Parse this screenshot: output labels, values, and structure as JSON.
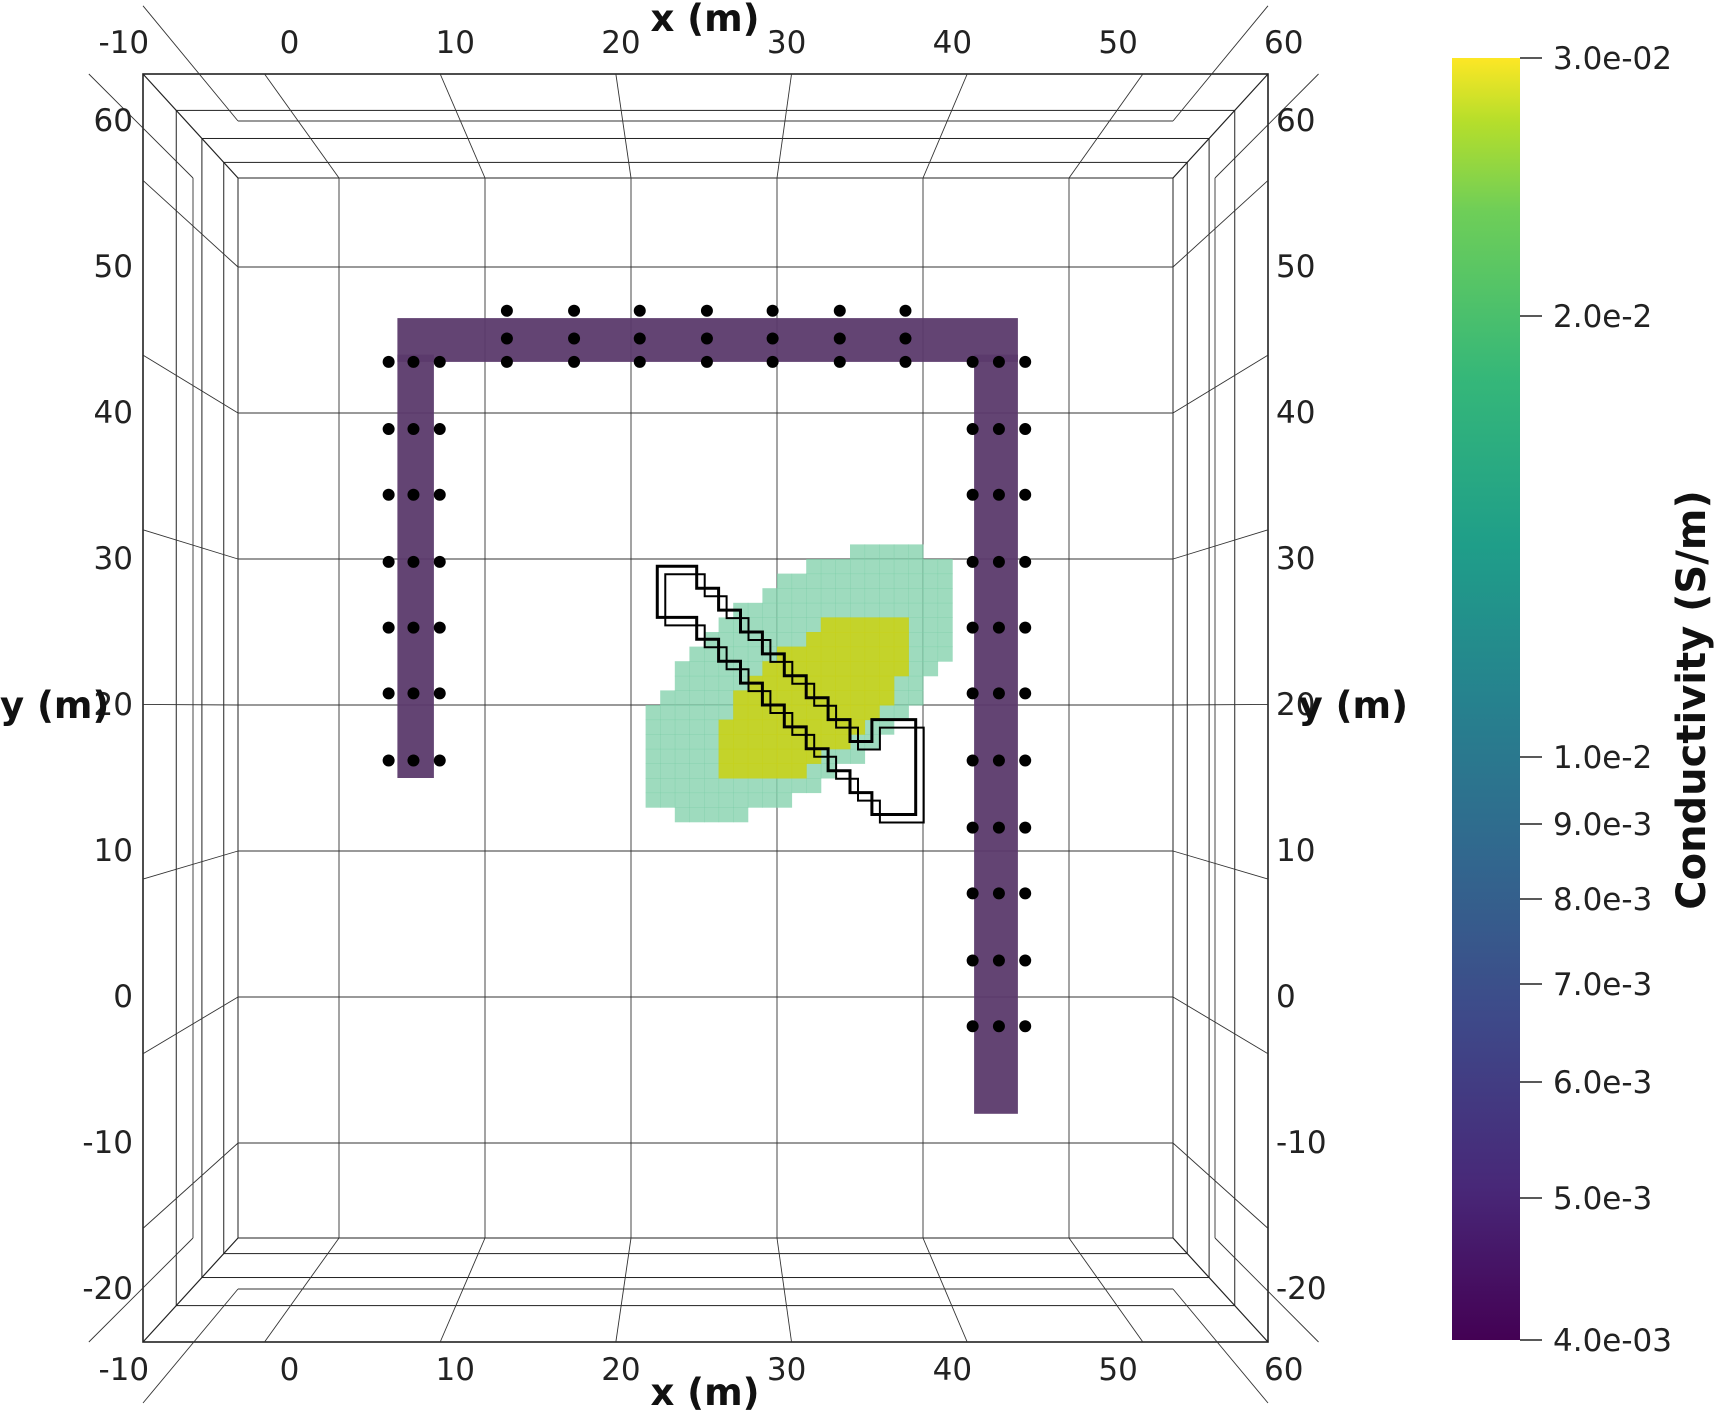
{
  "chart_data": {
    "type": "3d-volume-render",
    "x_axis": {
      "label": "x (m)",
      "ticks": [
        -10,
        0,
        10,
        20,
        30,
        40,
        50,
        60
      ],
      "tick_labels": [
        "-10",
        "0",
        "10",
        "20",
        "30",
        "40",
        "50",
        "60"
      ],
      "range": [
        -13,
        64
      ]
    },
    "y_axis": {
      "label": "y (m)",
      "ticks": [
        -20,
        -10,
        0,
        10,
        20,
        30,
        40,
        50,
        60
      ],
      "tick_labels": [
        "-20",
        "-10",
        "0",
        "10",
        "20",
        "30",
        "40",
        "50",
        "60"
      ],
      "range": [
        -24,
        64
      ]
    },
    "colorbar": {
      "title": "Conductivity (S/m)",
      "range": [
        0.004,
        0.03
      ],
      "ticks": [
        0.03,
        0.02,
        0.01,
        0.009,
        0.008,
        0.007,
        0.006,
        0.005,
        0.004
      ],
      "tick_labels": [
        "3.0e-02",
        "2.0e-2",
        "1.0e-2",
        "9.0e-3",
        "8.0e-3",
        "7.0e-3",
        "6.0e-3",
        "5.0e-3",
        "4.0e-03"
      ],
      "scale": "log",
      "colormap": "viridis"
    },
    "boreholes": {
      "color": "#5b3a6b",
      "segments": [
        {
          "x": [
            4,
            6.5
          ],
          "y": [
            15,
            44
          ]
        },
        {
          "x": [
            4,
            46.5
          ],
          "y": [
            43.5,
            46.5
          ]
        },
        {
          "x": [
            43.5,
            46.5
          ],
          "y": [
            -8,
            44
          ]
        }
      ]
    },
    "electrodes": {
      "color": "#000000",
      "left_column": {
        "xs": [
          3.4,
          5.1,
          6.9
        ],
        "ys": [
          43.5,
          38.9,
          34.4,
          29.8,
          25.3,
          20.8,
          16.2
        ]
      },
      "top_row": {
        "xs": [
          11.5,
          16.1,
          20.6,
          25.2,
          29.7,
          34.3,
          38.8
        ],
        "ys": [
          47,
          45.1,
          43.5
        ]
      },
      "right_column": {
        "xs": [
          43.4,
          45.2,
          47.0
        ],
        "ys": [
          43.5,
          38.9,
          34.4,
          29.8,
          25.3,
          20.8,
          16.2,
          11.6,
          7.1,
          2.5,
          -2.0
        ]
      }
    },
    "anomaly": {
      "outer": {
        "conductivity": 0.015,
        "color": "#7ecfa8",
        "center": [
          31,
          21
        ],
        "half_length": 13,
        "half_width": 6.5,
        "angle_deg": -38
      },
      "inner": {
        "conductivity": 0.028,
        "color": "#c8d21a",
        "center": [
          32,
          20
        ],
        "half_length": 8,
        "half_width": 3.8,
        "angle_deg": -38
      }
    },
    "target_outline": {
      "color": "#000000",
      "path_x": [
        21.8,
        24.5,
        24.5,
        26,
        26,
        27.5,
        27.5,
        29,
        29,
        30.5,
        30.5,
        32,
        32,
        33.5,
        33.5,
        35,
        35,
        36.5,
        36.5,
        39.5,
        39.5,
        36.5,
        36.5,
        35,
        35,
        33.5,
        33.5,
        32,
        32,
        30.5,
        30.5,
        29,
        29,
        27.5,
        27.5,
        26,
        26,
        24.5,
        24.5,
        21.8
      ],
      "path_y": [
        29.5,
        29.5,
        28,
        28,
        26.5,
        26.5,
        25,
        25,
        23.5,
        23.5,
        22,
        22,
        20.5,
        20.5,
        19,
        19,
        17.5,
        17.5,
        19,
        19,
        12.5,
        12.5,
        14,
        14,
        15.5,
        15.5,
        17,
        17,
        18.5,
        18.5,
        20,
        20,
        21.5,
        21.5,
        23,
        23,
        24.5,
        24.5,
        26,
        26
      ]
    }
  }
}
